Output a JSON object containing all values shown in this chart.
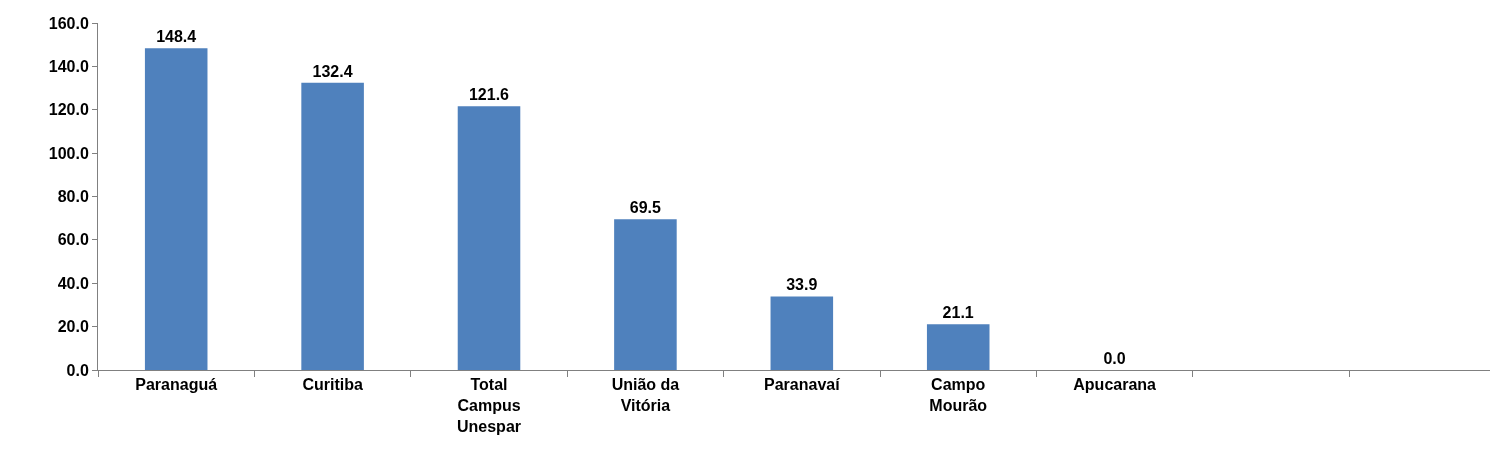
{
  "chart_data": {
    "type": "bar",
    "categories": [
      "Paranaguá",
      "Curitiba",
      "Total Campus Unespar",
      "União da Vitória",
      "Paranavaí",
      "Campo Mourão",
      "Apucarana",
      null,
      null
    ],
    "values": [
      148.4,
      132.4,
      121.6,
      69.5,
      33.9,
      21.1,
      0.0,
      null,
      null
    ],
    "value_labels": [
      "148.4",
      "132.4",
      "121.6",
      "69.5",
      "33.9",
      "21.1",
      "0.0",
      null,
      null
    ],
    "color": "#4f81bd",
    "ylim": [
      0,
      160
    ],
    "yticks": [
      {
        "value": 0,
        "label": "0.0"
      },
      {
        "value": 20,
        "label": "20.0"
      },
      {
        "value": 40,
        "label": "40.0"
      },
      {
        "value": 60,
        "label": "60.0"
      },
      {
        "value": 80,
        "label": "80.0"
      },
      {
        "value": 100,
        "label": "100.0"
      },
      {
        "value": 120,
        "label": "120.0"
      },
      {
        "value": 140,
        "label": "140.0"
      },
      {
        "value": 160,
        "label": "160.0"
      }
    ],
    "grid": false,
    "legend": false
  }
}
